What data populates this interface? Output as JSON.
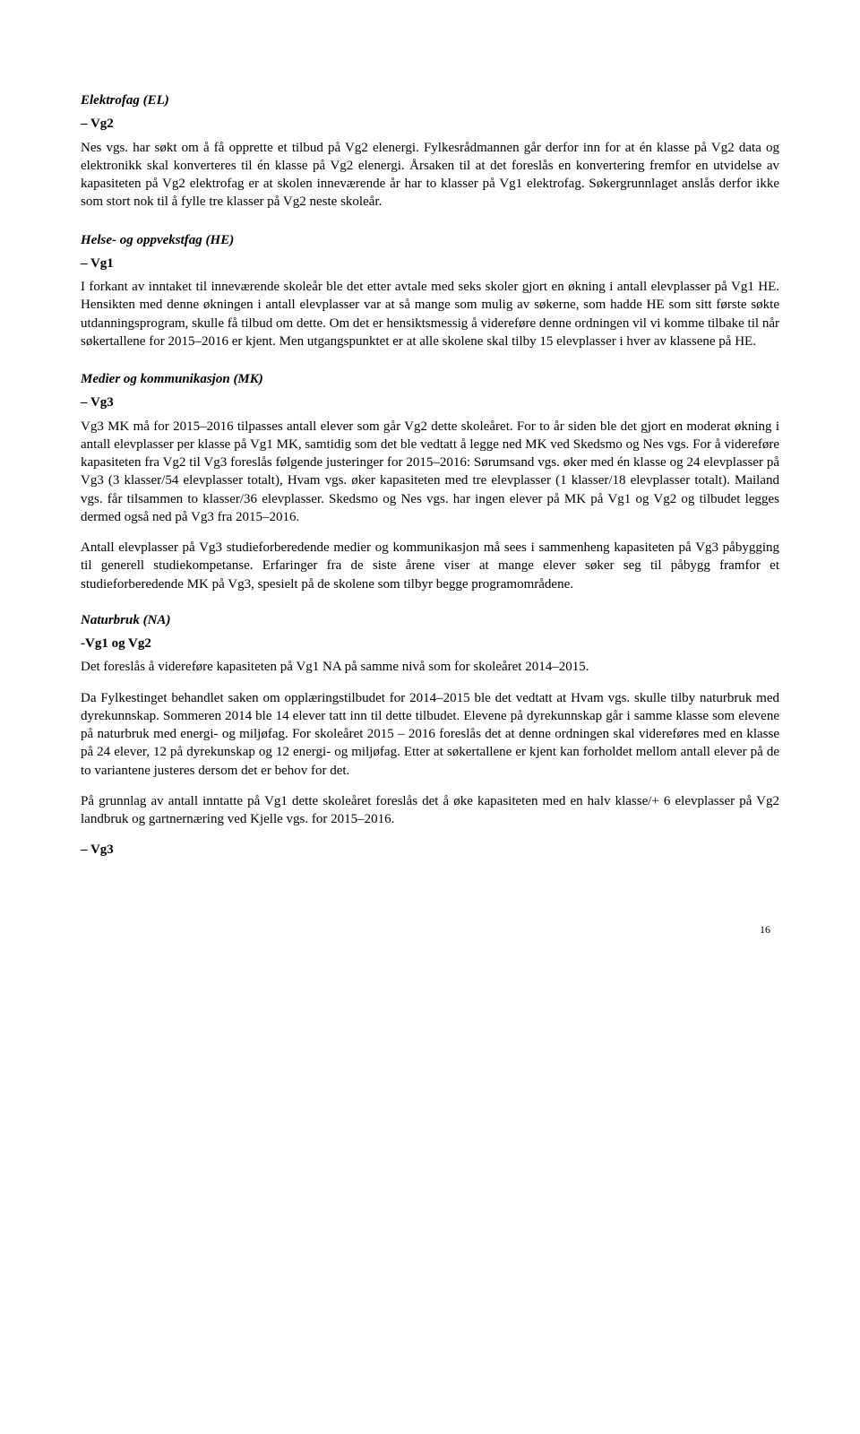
{
  "elektrofag": {
    "heading": "Elektrofag (EL)",
    "sub": "– Vg2",
    "p1": "Nes vgs. har søkt om å få opprette et tilbud på Vg2 elenergi. Fylkesrådmannen går derfor inn for at én klasse på Vg2 data og elektronikk skal konverteres til én klasse på Vg2 elenergi. Årsaken til at det foreslås en konvertering fremfor en utvidelse av kapasiteten på Vg2 elektrofag er at skolen inneværende år har to klasser på Vg1 elektrofag. Søkergrunnlaget anslås derfor ikke som stort nok til å fylle tre klasser på Vg2 neste skoleår."
  },
  "helse": {
    "heading": "Helse- og oppvekstfag (HE)",
    "sub": "– Vg1",
    "p1": "I forkant av inntaket til inneværende skoleår ble det etter avtale med seks skoler gjort en økning i antall elevplasser på Vg1 HE. Hensikten med denne økningen i antall elevplasser var at så mange som mulig av søkerne, som hadde HE som sitt første søkte utdanningsprogram, skulle få tilbud om dette. Om det er hensiktsmessig å videreføre denne ordningen vil vi komme tilbake til når søkertallene for 2015–2016 er kjent. Men utgangspunktet er at alle skolene skal tilby 15 elevplasser i hver av klassene på HE."
  },
  "medier": {
    "heading": "Medier og kommunikasjon (MK)",
    "sub": "– Vg3",
    "p1": "Vg3 MK må for 2015–2016 tilpasses antall elever som går Vg2 dette skoleåret. For to år siden ble det gjort en moderat økning i antall elevplasser per klasse på Vg1 MK, samtidig som det ble vedtatt å legge ned MK ved Skedsmo og Nes vgs. For å videreføre kapasiteten fra Vg2 til Vg3 foreslås følgende justeringer for 2015–2016: Sørumsand vgs. øker med én klasse og 24 elevplasser på Vg3 (3 klasser/54 elevplasser totalt), Hvam vgs. øker kapasiteten med tre elevplasser (1 klasser/18 elevplasser totalt). Mailand vgs. får tilsammen to klasser/36 elevplasser. Skedsmo og Nes vgs. har ingen elever på MK på Vg1 og Vg2 og tilbudet legges dermed også ned på Vg3 fra 2015–2016.",
    "p2": "Antall elevplasser på Vg3 studieforberedende medier og kommunikasjon må sees i sammenheng kapasiteten på Vg3 påbygging til generell studiekompetanse. Erfaringer fra de siste årene viser at mange elever søker seg til påbygg framfor et studieforberedende MK på Vg3, spesielt på de skolene som tilbyr begge programområdene."
  },
  "naturbruk": {
    "heading": "Naturbruk (NA)",
    "sub": "-Vg1 og Vg2",
    "p1": "Det foreslås å videreføre kapasiteten på Vg1 NA på samme nivå som for skoleåret 2014–2015.",
    "p2": "Da Fylkestinget behandlet saken om opplæringstilbudet for 2014–2015 ble det vedtatt at Hvam vgs. skulle tilby naturbruk med dyrekunnskap. Sommeren 2014 ble 14 elever tatt inn til dette tilbudet. Elevene på dyrekunnskap går i samme klasse som elevene på naturbruk med energi- og miljøfag. For skoleåret 2015 – 2016 foreslås det at denne ordningen skal videreføres med en klasse på 24 elever, 12 på dyrekunskap og 12 energi- og miljøfag. Etter at søkertallene er kjent kan forholdet mellom antall elever på de to variantene justeres dersom det er behov for det.",
    "p3": "På grunnlag av antall inntatte på Vg1 dette skoleåret foreslås det å øke kapasiteten med en halv klasse/+ 6 elevplasser på Vg2 landbruk og gartnernæring ved Kjelle vgs. for 2015–2016.",
    "sub2": "– Vg3"
  },
  "page_number": "16"
}
